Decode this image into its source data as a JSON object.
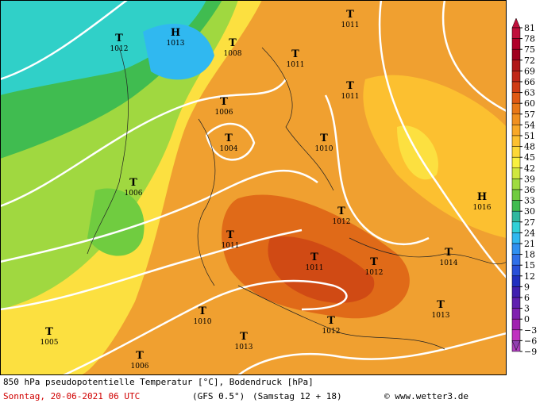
{
  "caption": {
    "line1": "850 hPa pseudopotentielle Temperatur [°C], Bodendruck [hPa]",
    "date": "Sonntag, 20-06-2021  06 UTC",
    "model": "(GFS 0.5°)",
    "run": "(Samstag 12 + 18)",
    "credit": "© www.wetter3.de"
  },
  "colorbar": [
    {
      "label": "81",
      "color": "#c0103c"
    },
    {
      "label": "78",
      "color": "#b0002a"
    },
    {
      "label": "75",
      "color": "#a00020"
    },
    {
      "label": "72",
      "color": "#b01818"
    },
    {
      "label": "69",
      "color": "#c02818"
    },
    {
      "label": "66",
      "color": "#d03c14"
    },
    {
      "label": "63",
      "color": "#e05a14"
    },
    {
      "label": "60",
      "color": "#e87818"
    },
    {
      "label": "57",
      "color": "#f09020"
    },
    {
      "label": "54",
      "color": "#f8a828"
    },
    {
      "label": "51",
      "color": "#fcc030"
    },
    {
      "label": "48",
      "color": "#fcd838"
    },
    {
      "label": "45",
      "color": "#f8f040"
    },
    {
      "label": "42",
      "color": "#d0e840"
    },
    {
      "label": "39",
      "color": "#a0dc40"
    },
    {
      "label": "36",
      "color": "#70cc40"
    },
    {
      "label": "33",
      "color": "#40bc50"
    },
    {
      "label": "30",
      "color": "#30b8a0"
    },
    {
      "label": "27",
      "color": "#30d0d8"
    },
    {
      "label": "24",
      "color": "#30b8f0"
    },
    {
      "label": "21",
      "color": "#3090f0"
    },
    {
      "label": "18",
      "color": "#3070e8"
    },
    {
      "label": "15",
      "color": "#2850d8"
    },
    {
      "label": "12",
      "color": "#2030c0"
    },
    {
      "label": "9",
      "color": "#4020b0"
    },
    {
      "label": "6",
      "color": "#6020b0"
    },
    {
      "label": "3",
      "color": "#8020b0"
    },
    {
      "label": "0",
      "color": "#a020b0"
    },
    {
      "label": "−3",
      "color": "#c030c0"
    },
    {
      "label": "−6",
      "color": "#b040c0"
    },
    {
      "label": "−9",
      "color": "#9040b0"
    }
  ],
  "centers": [
    {
      "symbol": "H",
      "value": "1013"
    },
    {
      "symbol": "T",
      "value": "1012"
    },
    {
      "symbol": "T",
      "value": "1008"
    },
    {
      "symbol": "T",
      "value": "1011"
    },
    {
      "symbol": "T",
      "value": "1011"
    },
    {
      "symbol": "T",
      "value": "1011"
    },
    {
      "symbol": "T",
      "value": "1006"
    },
    {
      "symbol": "T",
      "value": "1004"
    },
    {
      "symbol": "T",
      "value": "1010"
    },
    {
      "symbol": "T",
      "value": "1006"
    },
    {
      "symbol": "T",
      "value": "1012"
    },
    {
      "symbol": "H",
      "value": "1016"
    },
    {
      "symbol": "T",
      "value": "1011"
    },
    {
      "symbol": "T",
      "value": "1014"
    },
    {
      "symbol": "T",
      "value": "1011"
    },
    {
      "symbol": "T",
      "value": "1012"
    },
    {
      "symbol": "T",
      "value": "1010"
    },
    {
      "symbol": "T",
      "value": "1013"
    },
    {
      "symbol": "T",
      "value": "1012"
    },
    {
      "symbol": "T",
      "value": "1013"
    },
    {
      "symbol": "T",
      "value": "1005"
    },
    {
      "symbol": "T",
      "value": "1006"
    }
  ]
}
